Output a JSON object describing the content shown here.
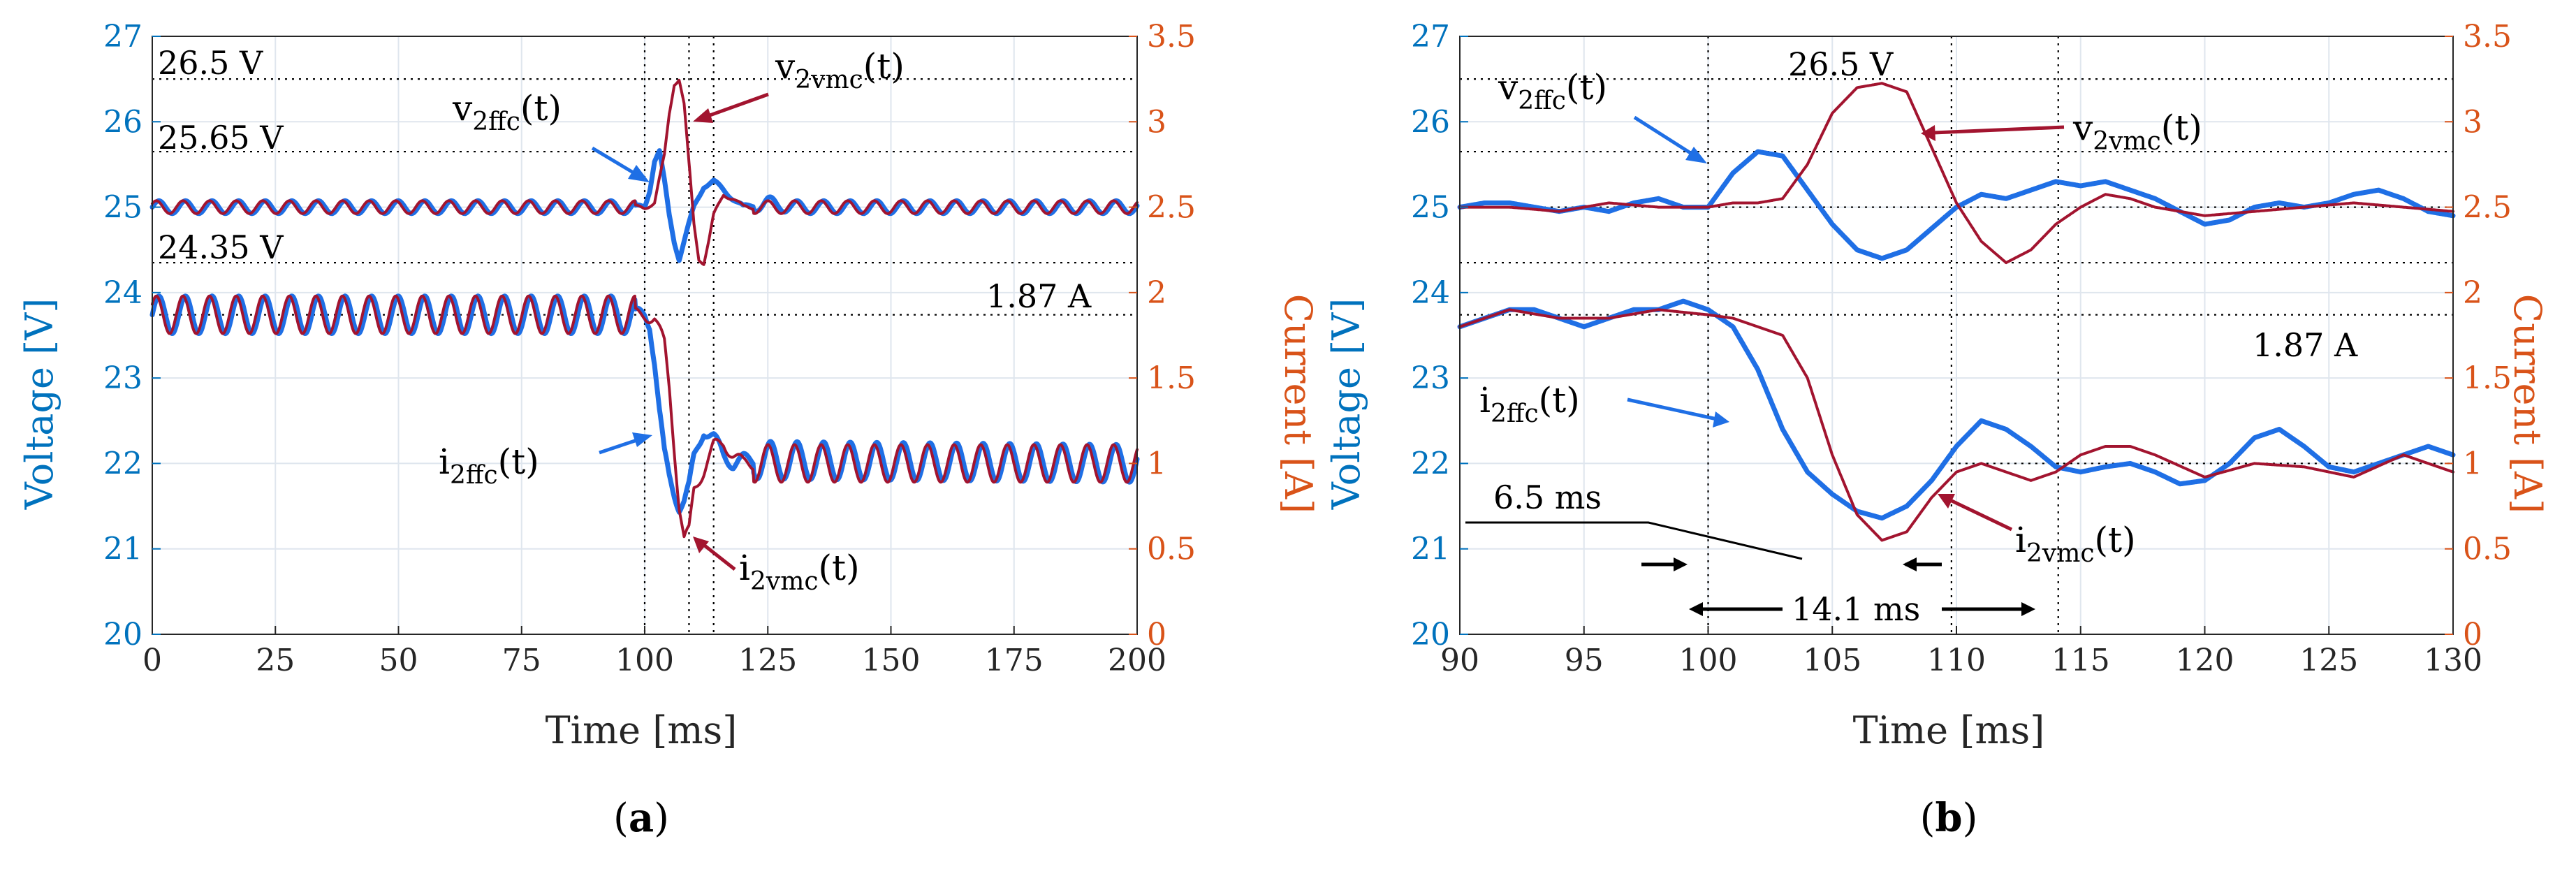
{
  "colors": {
    "left_axis": "#0072BD",
    "right_axis": "#D95319",
    "ffc": "#1F6FE5",
    "vmc": "#A2142F",
    "grid": "#dfe6ee",
    "annotation": "#000000"
  },
  "chart_data": [
    {
      "type": "line",
      "panel_label": "a",
      "xlabel": "Time [ms]",
      "ylabel_left": "Voltage [V]",
      "ylabel_right": "Current [A]",
      "xlim": [
        0,
        200
      ],
      "ylim_left": [
        20,
        27
      ],
      "ylim_right": [
        0,
        3.5
      ],
      "x_ticks": [
        "0",
        "25",
        "50",
        "75",
        "100",
        "125",
        "150",
        "175",
        "200"
      ],
      "y_left_ticks": [
        "20",
        "21",
        "22",
        "23",
        "24",
        "25",
        "26",
        "27"
      ],
      "y_right_ticks": [
        "0",
        "0.5",
        "1",
        "1.5",
        "2",
        "2.5",
        "3",
        "3.5"
      ],
      "grid": true,
      "annotations": [
        {
          "text": "26.5 V",
          "value": 26.5,
          "axis": "left"
        },
        {
          "text": "25.65 V",
          "value": 25.65,
          "axis": "left"
        },
        {
          "text": "24.35 V",
          "value": 24.35,
          "axis": "left"
        },
        {
          "text": "1.87 A",
          "value": 1.87,
          "axis": "right"
        }
      ],
      "marker_lines_x": [
        100,
        109,
        114
      ],
      "series_labels": {
        "v_ffc": {
          "main": "v",
          "sub": "2ffc",
          "tail": "(t)"
        },
        "v_vmc": {
          "main": "v",
          "sub": "2vmc",
          "tail": "(t)"
        },
        "i_ffc": {
          "main": "i",
          "sub": "2ffc",
          "tail": "(t)"
        },
        "i_vmc": {
          "main": "i",
          "sub": "2vmc",
          "tail": "(t)"
        }
      },
      "series": [
        {
          "name": "v_2ffc(t)",
          "axis": "left",
          "x": [
            0,
            100,
            101,
            102,
            103,
            104,
            105,
            106,
            107,
            108,
            110,
            112,
            114,
            116,
            118,
            120,
            125,
            130,
            200
          ],
          "values": [
            25.0,
            25.0,
            25.2,
            25.55,
            25.65,
            25.3,
            24.9,
            24.6,
            24.4,
            24.6,
            25.0,
            25.25,
            25.3,
            25.2,
            25.1,
            25.0,
            25.05,
            25.0,
            25.0
          ]
        },
        {
          "name": "v_2vmc(t)",
          "axis": "left",
          "x": [
            0,
            100,
            102,
            104,
            105,
            106,
            107,
            108,
            109,
            110,
            111,
            112,
            113,
            114,
            116,
            118,
            120,
            125,
            200
          ],
          "values": [
            25.0,
            25.0,
            25.05,
            25.6,
            26.1,
            26.45,
            26.5,
            26.2,
            25.5,
            24.8,
            24.4,
            24.35,
            24.6,
            24.9,
            25.15,
            25.1,
            25.0,
            25.0,
            25.0
          ]
        },
        {
          "name": "i_2ffc(t)",
          "axis": "right",
          "x": [
            0,
            100,
            101,
            102,
            103,
            104,
            105,
            106,
            107,
            108,
            109,
            110,
            112,
            114,
            116,
            118,
            120,
            200
          ],
          "values": [
            1.87,
            1.87,
            1.82,
            1.6,
            1.3,
            1.05,
            0.92,
            0.83,
            0.75,
            0.78,
            0.86,
            1.03,
            1.2,
            1.15,
            1.05,
            1.0,
            1.02,
            1.0
          ]
        },
        {
          "name": "i_2vmc(t)",
          "axis": "right",
          "x": [
            0,
            100,
            102,
            104,
            105,
            106,
            107,
            108,
            109,
            110,
            112,
            114,
            116,
            118,
            120,
            200
          ],
          "values": [
            1.87,
            1.87,
            1.85,
            1.7,
            1.45,
            1.1,
            0.75,
            0.55,
            0.6,
            0.85,
            0.96,
            1.1,
            1.12,
            1.05,
            1.0,
            1.0
          ]
        }
      ]
    },
    {
      "type": "line",
      "panel_label": "b",
      "xlabel": "Time [ms]",
      "ylabel_left": "Voltage [V]",
      "ylabel_right": "Current [A]",
      "xlim": [
        90,
        130
      ],
      "ylim_left": [
        20,
        27
      ],
      "ylim_right": [
        0,
        3.5
      ],
      "x_ticks": [
        "90",
        "95",
        "100",
        "105",
        "110",
        "115",
        "120",
        "125",
        "130"
      ],
      "y_left_ticks": [
        "20",
        "21",
        "22",
        "23",
        "24",
        "25",
        "26",
        "27"
      ],
      "y_right_ticks": [
        "0",
        "0.5",
        "1",
        "1.5",
        "2",
        "2.5",
        "3",
        "3.5"
      ],
      "grid": true,
      "annotations": [
        {
          "text": "26.5 V",
          "value": 26.5,
          "axis": "left"
        },
        {
          "text": "1.87 A",
          "value": 1.87,
          "axis": "right"
        },
        {
          "text": "6.5 ms",
          "value": 6.5,
          "unit": "ms"
        },
        {
          "text": "14.1 ms",
          "value": 14.1,
          "unit": "ms"
        }
      ],
      "marker_lines_x": [
        100,
        109.8,
        114.1
      ],
      "series_labels": {
        "v_ffc": {
          "main": "v",
          "sub": "2ffc",
          "tail": "(t)"
        },
        "v_vmc": {
          "main": "v",
          "sub": "2vmc",
          "tail": "(t)"
        },
        "i_ffc": {
          "main": "i",
          "sub": "2ffc",
          "tail": "(t)"
        },
        "i_vmc": {
          "main": "i",
          "sub": "2vmc",
          "tail": "(t)"
        }
      },
      "series": [
        {
          "name": "v_2ffc(t)",
          "axis": "left",
          "x": [
            90,
            91,
            92,
            93,
            94,
            95,
            96,
            97,
            98,
            99,
            100,
            101,
            102,
            103,
            104,
            105,
            106,
            107,
            108,
            109,
            110,
            111,
            112,
            113,
            114,
            115,
            116,
            117,
            118,
            119,
            120,
            121,
            122,
            123,
            124,
            125,
            126,
            127,
            128,
            129,
            130
          ],
          "values": [
            25.0,
            25.05,
            25.05,
            25.0,
            24.95,
            25.0,
            24.95,
            25.05,
            25.1,
            25.0,
            25.0,
            25.4,
            25.65,
            25.6,
            25.2,
            24.8,
            24.5,
            24.4,
            24.5,
            24.75,
            25.0,
            25.15,
            25.1,
            25.2,
            25.3,
            25.25,
            25.3,
            25.2,
            25.1,
            24.95,
            24.8,
            24.85,
            25.0,
            25.05,
            25.0,
            25.05,
            25.15,
            25.2,
            25.1,
            24.95,
            24.9
          ]
        },
        {
          "name": "v_2vmc(t)",
          "axis": "left",
          "x": [
            90,
            92,
            94,
            96,
            98,
            100,
            101,
            102,
            103,
            104,
            105,
            106,
            107,
            108,
            109,
            110,
            111,
            112,
            113,
            114,
            115,
            116,
            117,
            118,
            120,
            122,
            124,
            126,
            128,
            130
          ],
          "values": [
            25.0,
            25.0,
            24.95,
            25.05,
            25.0,
            25.0,
            25.05,
            25.05,
            25.1,
            25.5,
            26.1,
            26.4,
            26.45,
            26.35,
            25.7,
            25.05,
            24.6,
            24.35,
            24.5,
            24.8,
            25.0,
            25.15,
            25.1,
            25.0,
            24.9,
            24.95,
            25.0,
            25.05,
            25.0,
            24.95
          ]
        },
        {
          "name": "i_2ffc(t)",
          "axis": "right",
          "x": [
            90,
            91,
            92,
            93,
            94,
            95,
            96,
            97,
            98,
            99,
            100,
            101,
            102,
            103,
            104,
            105,
            106,
            107,
            108,
            109,
            110,
            111,
            112,
            113,
            114,
            115,
            116,
            117,
            118,
            119,
            120,
            121,
            122,
            123,
            124,
            125,
            126,
            127,
            128,
            129,
            130
          ],
          "values": [
            1.8,
            1.85,
            1.9,
            1.9,
            1.85,
            1.8,
            1.85,
            1.9,
            1.9,
            1.95,
            1.9,
            1.8,
            1.55,
            1.2,
            0.95,
            0.82,
            0.72,
            0.68,
            0.75,
            0.9,
            1.1,
            1.25,
            1.2,
            1.1,
            0.98,
            0.95,
            0.98,
            1.0,
            0.95,
            0.88,
            0.9,
            1.0,
            1.15,
            1.2,
            1.1,
            0.98,
            0.95,
            1.0,
            1.05,
            1.1,
            1.05
          ]
        },
        {
          "name": "i_2vmc(t)",
          "axis": "right",
          "x": [
            90,
            92,
            94,
            96,
            98,
            100,
            101,
            102,
            103,
            104,
            105,
            106,
            107,
            108,
            109,
            110,
            111,
            112,
            113,
            114,
            115,
            116,
            117,
            118,
            120,
            122,
            124,
            126,
            128,
            130
          ],
          "values": [
            1.8,
            1.9,
            1.85,
            1.85,
            1.9,
            1.87,
            1.85,
            1.8,
            1.75,
            1.5,
            1.05,
            0.7,
            0.55,
            0.6,
            0.8,
            0.95,
            1.0,
            0.95,
            0.9,
            0.95,
            1.05,
            1.1,
            1.1,
            1.05,
            0.92,
            1.0,
            0.98,
            0.92,
            1.05,
            0.95
          ]
        }
      ]
    }
  ]
}
